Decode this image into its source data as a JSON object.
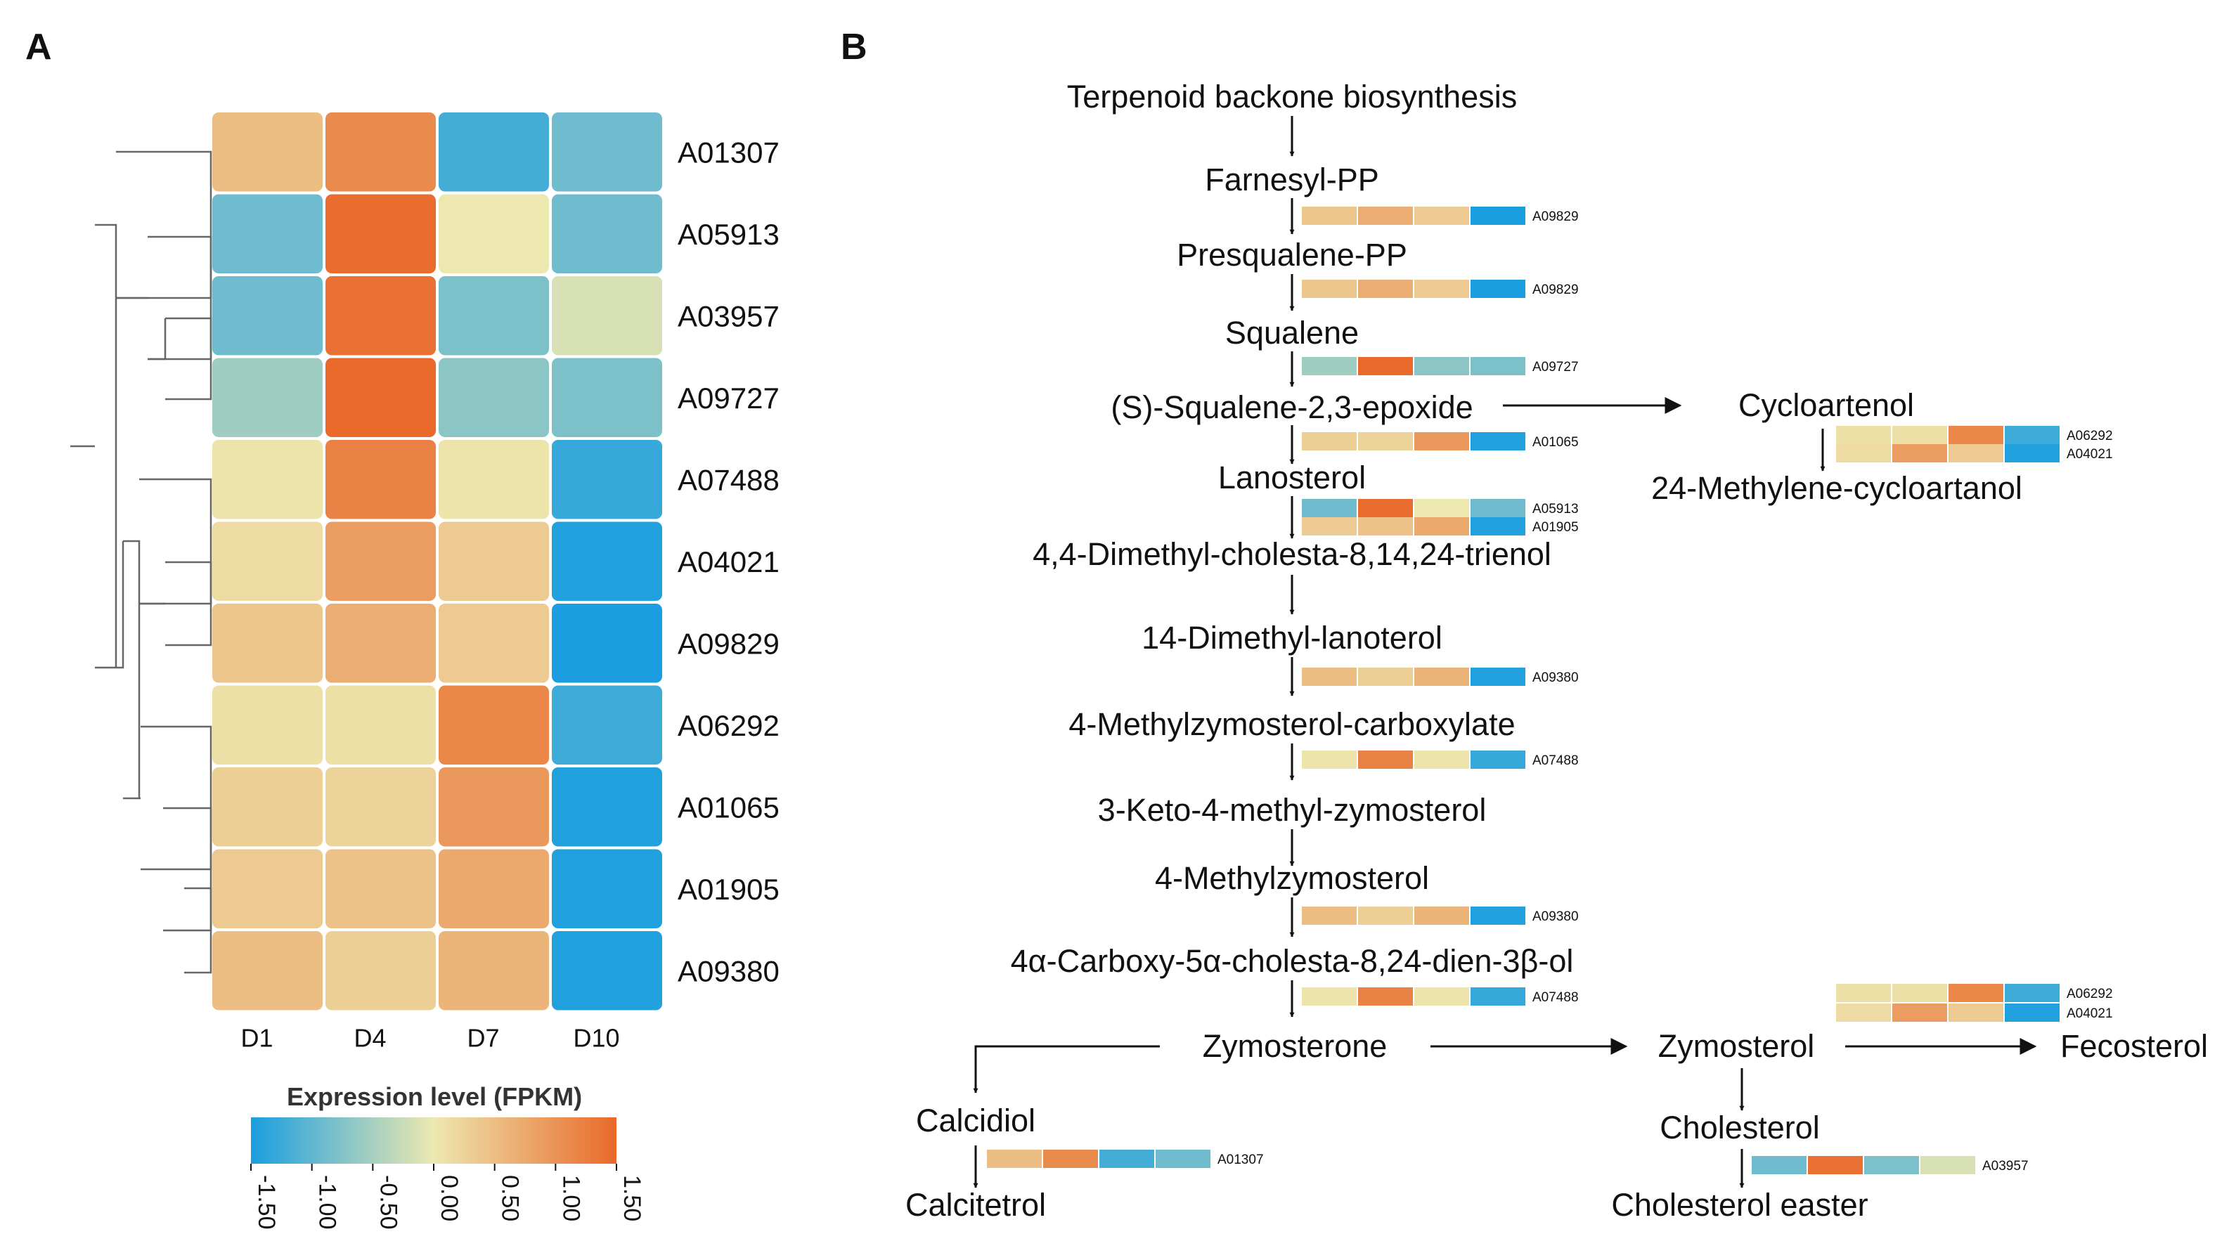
{
  "panels": {
    "a": "A",
    "b": "B"
  },
  "colors": {
    "low": "#1a9ee0",
    "mid": "#ede8b0",
    "high": "#e9692a",
    "line": "#111111",
    "dendro": "#666666"
  },
  "heatmap": {
    "columns": [
      "D1",
      "D4",
      "D7",
      "D10"
    ],
    "rows": [
      {
        "gene": "A01307",
        "values": [
          0.5,
          1.1,
          -1.2,
          -0.9
        ]
      },
      {
        "gene": "A05913",
        "values": [
          -0.9,
          1.45,
          0.0,
          -0.9
        ]
      },
      {
        "gene": "A03957",
        "values": [
          -0.9,
          1.4,
          -0.8,
          -0.15
        ]
      },
      {
        "gene": "A09727",
        "values": [
          -0.55,
          1.5,
          -0.7,
          -0.8
        ]
      },
      {
        "gene": "A07488",
        "values": [
          0.05,
          1.2,
          0.05,
          -1.3
        ]
      },
      {
        "gene": "A04021",
        "values": [
          0.15,
          0.9,
          0.35,
          -1.45
        ]
      },
      {
        "gene": "A09829",
        "values": [
          0.4,
          0.7,
          0.35,
          -1.5
        ]
      },
      {
        "gene": "A06292",
        "values": [
          0.1,
          0.1,
          1.15,
          -1.25
        ]
      },
      {
        "gene": "A01065",
        "values": [
          0.3,
          0.25,
          0.95,
          -1.45
        ]
      },
      {
        "gene": "A01905",
        "values": [
          0.35,
          0.45,
          0.75,
          -1.45
        ]
      },
      {
        "gene": "A09380",
        "values": [
          0.5,
          0.3,
          0.6,
          -1.45
        ]
      }
    ]
  },
  "legend": {
    "title": "Expression level (FPKM)",
    "min": -1.5,
    "max": 1.5,
    "ticks": [
      "-1.50",
      "-1.00",
      "-0.50",
      "0.00",
      "0.50",
      "1.00",
      "1.50"
    ]
  },
  "pathway": {
    "nodes": {
      "terpenoid": "Terpenoid backone biosynthesis",
      "farnesyl": "Farnesyl-PP",
      "presqualene": "Presqualene-PP",
      "squalene": "Squalene",
      "epoxide": "(S)-Squalene-2,3-epoxide",
      "lanosterol": "Lanosterol",
      "dimethyl_cholesta": "4,4-Dimethyl-cholesta-8,14,24-trienol",
      "lanoterol": "14-Dimethyl-lanoterol",
      "carboxylate": "4-Methylzymosterol-carboxylate",
      "keto": "3-Keto-4-methyl-zymosterol",
      "methylzymosterol": "4-Methylzymosterol",
      "carboxy": "4α-Carboxy-5α-cholesta-8,24-dien-3β-ol",
      "zymosterone": "Zymosterone",
      "calcidiol": "Calcidiol",
      "calcitetrol": "Calcitetrol",
      "zymosterol": "Zymosterol",
      "fecosterol": "Fecosterol",
      "cholesterol": "Cholesterol",
      "cholesterol_easter": "Cholesterol easter",
      "cycloartenol": "Cycloartenol",
      "methylene_cycloartanol": "24-Methylene-cycloartanol"
    },
    "mini_heatmaps": [
      {
        "id": "farnesyl",
        "gene": "A09829"
      },
      {
        "id": "presqualene",
        "gene": "A09829"
      },
      {
        "id": "squalene",
        "gene": "A09727"
      },
      {
        "id": "epoxide",
        "gene": "A01065"
      },
      {
        "id": "lanosterol_1",
        "gene": "A05913"
      },
      {
        "id": "lanosterol_2",
        "gene": "A01905"
      },
      {
        "id": "lanoterol",
        "gene": "A09380"
      },
      {
        "id": "carboxylate",
        "gene": "A07488"
      },
      {
        "id": "methylzymosterol",
        "gene": "A09380"
      },
      {
        "id": "carboxy",
        "gene": "A07488"
      },
      {
        "id": "cycloartenol_1",
        "gene": "A06292"
      },
      {
        "id": "cycloartenol_2",
        "gene": "A04021"
      },
      {
        "id": "zymosterol_1",
        "gene": "A06292"
      },
      {
        "id": "zymosterol_2",
        "gene": "A04021"
      },
      {
        "id": "calcidiol",
        "gene": "A01307"
      },
      {
        "id": "cholesterol",
        "gene": "A03957"
      }
    ]
  }
}
